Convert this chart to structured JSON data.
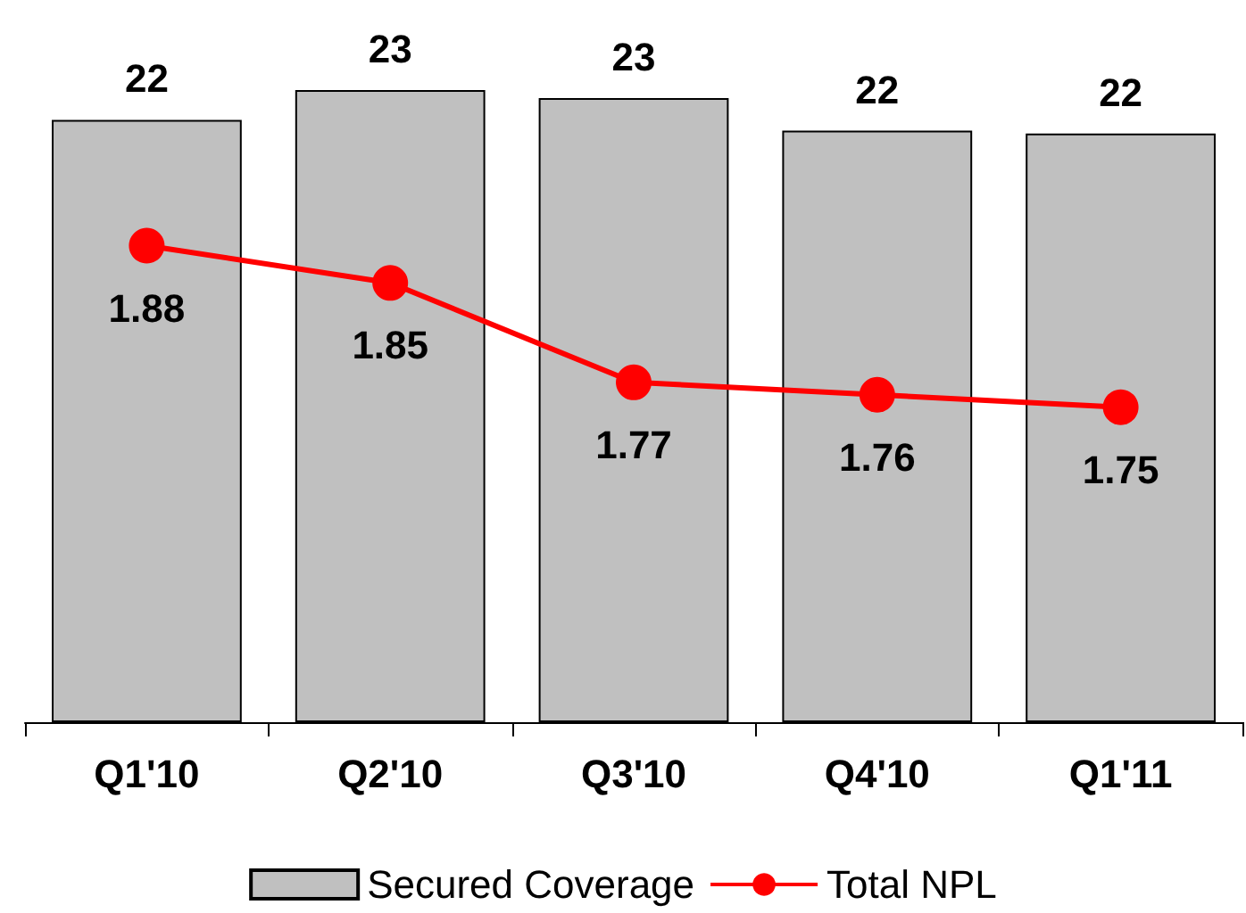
{
  "chart_data": {
    "type": "bar",
    "categories": [
      "Q1'10",
      "Q2'10",
      "Q3'10",
      "Q4'10",
      "Q1'11"
    ],
    "series": [
      {
        "name": "Secured Coverage",
        "color": "#c0c0c0",
        "values": [
          22.2,
          23.3,
          23.0,
          21.8,
          21.7
        ],
        "value_labels": [
          "22",
          "23",
          "23",
          "22",
          "22"
        ]
      },
      {
        "name": "Total NPL",
        "type": "line",
        "axis": "y2",
        "color": "#ff0000",
        "values": [
          1.88,
          1.85,
          1.77,
          1.76,
          1.75
        ],
        "value_labels": [
          "1.88",
          "1.85",
          "1.77",
          "1.76",
          "1.75"
        ]
      }
    ],
    "tick_labels": "x",
    "grid": false,
    "legend": "bottom",
    "marker": "circle",
    "line_style": "solid"
  }
}
